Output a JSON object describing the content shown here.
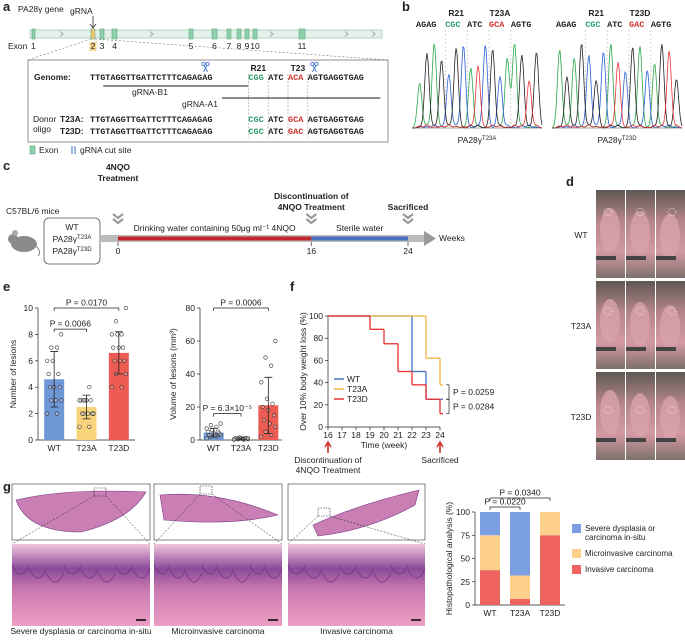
{
  "panels": [
    "a",
    "b",
    "c",
    "d",
    "e",
    "f",
    "g"
  ],
  "gene": {
    "title": "PA28γ gene",
    "grna": "gRNA",
    "exon_prefix": "Exon",
    "exons": [
      "1",
      "2",
      "3",
      "4",
      "5",
      "6",
      "7",
      "8",
      "9",
      "10",
      "11"
    ],
    "rows": [
      {
        "label": "Genome:",
        "segments": [
          "TTGTAGGTTGATTCTTTCAGAGAG",
          "CGG",
          "ATC",
          "ACA",
          "AGTGAGGTGAG"
        ]
      },
      {
        "label": "T23A:",
        "segments": [
          "TTGTAGGTTGATTCTTTCAGAGAG",
          "CGC",
          "ATC",
          "GCA",
          "AGTGAGGTGAG"
        ]
      },
      {
        "label": "T23D:",
        "segments": [
          "TTGTAGGTTGATTCTTTCAGAGAG",
          "CGC",
          "ATC",
          "GAC",
          "AGTGAGGTGAG"
        ]
      }
    ],
    "r21": "R21",
    "t23": "T23",
    "grna_b1": "gRNA-B1",
    "grna_a1": "gRNA-A1",
    "donor": [
      "Donor",
      "oligo"
    ],
    "legend": [
      "Exon",
      "gRNA cut site"
    ]
  },
  "chromatograms": [
    {
      "r21": "R21",
      "mut": "T23A",
      "segments": [
        "AGAG",
        "CGC",
        "ATC",
        "GCA",
        "AGTG"
      ],
      "caption": "PA28γ",
      "caption_sup": "T23A"
    },
    {
      "r21": "R21",
      "mut": "T23D",
      "segments": [
        "AGAG",
        "CGC",
        "ATC",
        "GAC",
        "AGTG"
      ],
      "caption": "PA28γ",
      "caption_sup": "T23D"
    }
  ],
  "timeline": {
    "strain": "C57BL/6 mice",
    "groups": [
      {
        "text": "WT"
      },
      {
        "text": "PA28γ",
        "sup": "T23A"
      },
      {
        "text": "PA28γ",
        "sup": "T23D"
      }
    ],
    "events": [
      {
        "week": 0,
        "label": [
          "4NQO",
          "Treatment"
        ]
      },
      {
        "week": 16,
        "label": [
          "Discontinuation of",
          "4NQO Treatment"
        ]
      },
      {
        "week": 24,
        "label": [
          "Sacrificed"
        ]
      }
    ],
    "phases": [
      "Drinking water containing 50μg ml⁻¹ 4NQO",
      "Sterile water"
    ],
    "unit": "Weeks"
  },
  "photos": {
    "rows": [
      "WT",
      "T23A",
      "T23D"
    ]
  },
  "histology": {
    "captions": [
      "Severe dysplasia or carcinoma in-situ",
      "Microinvasive carcinoma",
      "Invasive carcinoma"
    ]
  },
  "chart_data": [
    {
      "type": "dotbar",
      "ylabel": "Number of lesions",
      "categories": [
        "WT",
        "T23A",
        "T23D"
      ],
      "colors": [
        "#6f97d6",
        "#f8d47c",
        "#ec5c52"
      ],
      "values": [
        4.6,
        2.5,
        6.6
      ],
      "errors": [
        2.1,
        0.9,
        1.6
      ],
      "points": [
        [
          2,
          2,
          3,
          3,
          3,
          4,
          4,
          4,
          5,
          5,
          6,
          6,
          7,
          7,
          8
        ],
        [
          1,
          1,
          2,
          2,
          2,
          2,
          2,
          3,
          3,
          3,
          3,
          3,
          4,
          3,
          2
        ],
        [
          4,
          4,
          5,
          5,
          6,
          6,
          6,
          7,
          7,
          7,
          8,
          8,
          8,
          9,
          10
        ]
      ],
      "ylim": [
        0,
        10
      ],
      "yticks": [
        0,
        2,
        4,
        6,
        8,
        10
      ],
      "annotations": [
        "P = 0.0066",
        "P = 0.0170"
      ]
    },
    {
      "type": "dotbar",
      "ylabel": "Volume of lesions (mm³)",
      "categories": [
        "WT",
        "T23A",
        "T23D"
      ],
      "colors": [
        "#6f97d6",
        "#f8d47c",
        "#ec5c52"
      ],
      "values": [
        4.5,
        0.8,
        21
      ],
      "errors": [
        2.6,
        0.4,
        17
      ],
      "points": [
        [
          1,
          2,
          2,
          3,
          3,
          3,
          4,
          4,
          5,
          5,
          6,
          7,
          8,
          9,
          10
        ],
        [
          0.2,
          0.3,
          0.5,
          0.5,
          0.7,
          0.8,
          1,
          1,
          1,
          1.2,
          1.5,
          0.4,
          0.6,
          0.9,
          1.1
        ],
        [
          2,
          3,
          5,
          8,
          10,
          12,
          15,
          18,
          20,
          22,
          25,
          35,
          45,
          50,
          60
        ]
      ],
      "ylim": [
        0,
        80
      ],
      "yticks": [
        0,
        20,
        40,
        60,
        80
      ],
      "annotations": [
        "P = 6.3×10⁻⁵",
        "P = 0.0006"
      ]
    },
    {
      "type": "step",
      "xlabel": "Time (week)",
      "ylabel": "Over 10% body weight loss (%)",
      "x": [
        16,
        17,
        18,
        19,
        20,
        21,
        22,
        23,
        24
      ],
      "series": [
        {
          "name": "WT",
          "color": "#4472c4",
          "values": [
            100,
            100,
            100,
            100,
            100,
            100,
            50,
            25,
            25
          ]
        },
        {
          "name": "T23A",
          "color": "#f2b448",
          "values": [
            100,
            100,
            100,
            100,
            100,
            100,
            100,
            62,
            38
          ]
        },
        {
          "name": "T23D",
          "color": "#e8322f",
          "values": [
            100,
            100,
            100,
            88,
            75,
            50,
            38,
            25,
            12
          ]
        }
      ],
      "xlim": [
        16,
        24
      ],
      "xticks": [
        16,
        17,
        18,
        19,
        20,
        21,
        22,
        23,
        24
      ],
      "ylim": [
        0,
        100
      ],
      "yticks": [
        0,
        20,
        40,
        60,
        80,
        100
      ],
      "legend": "bottom-left",
      "annotations": [
        "P = 0.0259",
        "P = 0.0284"
      ],
      "markers": [
        {
          "x": 16,
          "label": [
            "Discontinuation of",
            "4NQO Treatment"
          ]
        },
        {
          "x": 24,
          "label": [
            "Sacrificed"
          ]
        }
      ]
    },
    {
      "type": "stacked",
      "ylabel": "Histopathological analysis (%)",
      "categories": [
        "WT",
        "T23A",
        "T23D"
      ],
      "series": [
        {
          "name": "Severe dysplasia or carcinoma in-situ",
          "color": "#7c9ee3",
          "values": [
            25,
            68.3,
            0
          ]
        },
        {
          "name": "Microinvasive carcinoma",
          "color": "#fdd18c",
          "values": [
            37.5,
            25,
            25
          ]
        },
        {
          "name": "Invasive carcinoma",
          "color": "#ef6360",
          "values": [
            37.5,
            6.7,
            75
          ]
        }
      ],
      "ylim": [
        0,
        100
      ],
      "yticks": [
        0,
        25,
        50,
        75,
        100
      ],
      "legend": "right",
      "annotations": [
        "P = 0.0340",
        "P = 0.0220"
      ]
    }
  ]
}
